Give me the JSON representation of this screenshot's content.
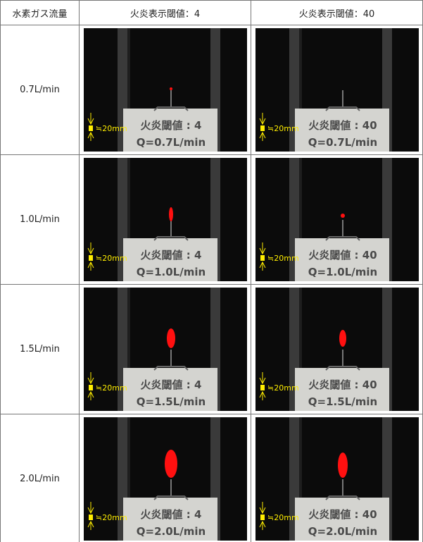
{
  "table": {
    "header": [
      "水素ガス流量",
      "火炎表示閾値：4",
      "火炎表示閾値：40"
    ],
    "rows": [
      {
        "flow": "0.7L/min",
        "cells": [
          {
            "scale": "≒20mm",
            "plate_threshold": "火炎閾値 : 4",
            "plate_flow": "Q=0.7L/min"
          },
          {
            "scale": "≒20mm",
            "plate_threshold": "火炎閾値 : 40",
            "plate_flow": "Q=0.7L/min"
          }
        ]
      },
      {
        "flow": "1.0L/min",
        "cells": [
          {
            "scale": "≒20mm",
            "plate_threshold": "火炎閾値 : 4",
            "plate_flow": "Q=1.0L/min"
          },
          {
            "scale": "≒20mm",
            "plate_threshold": "火炎閾値 : 40",
            "plate_flow": "Q=1.0L/min"
          }
        ]
      },
      {
        "flow": "1.5L/min",
        "cells": [
          {
            "scale": "≒20mm",
            "plate_threshold": "火炎閾値 : 4",
            "plate_flow": "Q=1.5L/min"
          },
          {
            "scale": "≒20mm",
            "plate_threshold": "火炎閾値 : 40",
            "plate_flow": "Q=1.5L/min"
          }
        ]
      },
      {
        "flow": "2.0L/min",
        "cells": [
          {
            "scale": "≒20mm",
            "plate_threshold": "火炎閾値 : 4",
            "plate_flow": "Q=2.0L/min"
          },
          {
            "scale": "≒20mm",
            "plate_threshold": "火炎閾値 : 40",
            "plate_flow": "Q=2.0L/min"
          }
        ]
      }
    ]
  }
}
